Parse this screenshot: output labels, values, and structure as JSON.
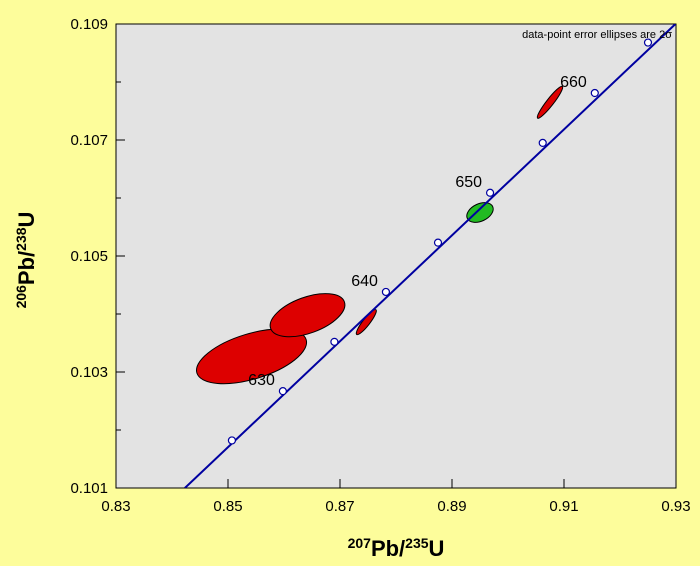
{
  "chart_data": {
    "type": "scatter",
    "title": "",
    "note": "data-point error ellipses are 2σ",
    "xaxis": {
      "label_sup": "207",
      "label_main": "Pb/",
      "label_sup2": "235",
      "label_end": "U",
      "range": [
        0.83,
        0.93
      ],
      "ticks": [
        "0.83",
        "0.85",
        "0.87",
        "0.89",
        "0.91",
        "0.93"
      ]
    },
    "yaxis": {
      "label_sup": "206",
      "label_main": "Pb/",
      "label_sup2": "238",
      "label_end": "U",
      "range": [
        0.101,
        0.109
      ],
      "ticks": [
        "0.101",
        "0.103",
        "0.105",
        "0.107",
        "0.109"
      ],
      "minor_ticks": [
        0.102,
        0.104,
        0.106,
        0.108
      ]
    },
    "grid": false,
    "plot_background": "#e3e3e3",
    "page_background": "#fdfd9b",
    "concordia": {
      "color": "#0000a0",
      "line": [
        [
          0.8423,
          0.101
        ],
        [
          0.9299,
          0.109
        ]
      ],
      "markers": [
        {
          "x": 0.8507,
          "y": 0.10182
        },
        {
          "x": 0.8598,
          "y": 0.10267,
          "label": "630"
        },
        {
          "x": 0.869,
          "y": 0.10352
        },
        {
          "x": 0.8782,
          "y": 0.10438,
          "label": "640"
        },
        {
          "x": 0.8875,
          "y": 0.10523
        },
        {
          "x": 0.8968,
          "y": 0.10609,
          "label": "650"
        },
        {
          "x": 0.9062,
          "y": 0.10695
        },
        {
          "x": 0.9155,
          "y": 0.10781,
          "label": "660"
        },
        {
          "x": 0.925,
          "y": 0.10868
        }
      ]
    },
    "ellipses": [
      {
        "cx": 0.8542,
        "cy": 0.10327,
        "rx": 0.0102,
        "ry": 0.00039,
        "angle": -17,
        "color": "#dd0000"
      },
      {
        "cx": 0.8642,
        "cy": 0.10398,
        "rx": 0.007,
        "ry": 0.00031,
        "angle": -20,
        "color": "#dd0000"
      },
      {
        "cx": 0.8747,
        "cy": 0.10386,
        "rx": 0.0028,
        "ry": 6e-05,
        "angle": -52,
        "color": "#dd0000"
      },
      {
        "cx": 0.895,
        "cy": 0.10575,
        "rx": 0.0025,
        "ry": 0.00015,
        "angle": -25,
        "color": "#22bb22"
      },
      {
        "cx": 0.9075,
        "cy": 0.10765,
        "rx": 0.0036,
        "ry": 6e-05,
        "angle": -52,
        "color": "#dd0000"
      }
    ]
  }
}
